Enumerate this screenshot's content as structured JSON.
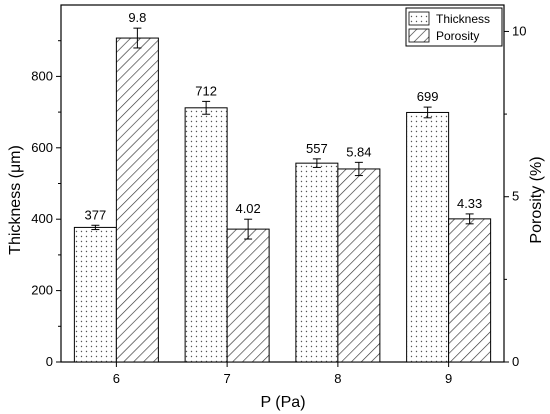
{
  "chart_data": {
    "type": "bar",
    "xlabel": "P (Pa)",
    "categories": [
      "6",
      "7",
      "8",
      "9"
    ],
    "y_left": {
      "label": "Thickness (μm)",
      "range": [
        0,
        1000
      ],
      "ticks": [
        0,
        200,
        400,
        600,
        800
      ]
    },
    "y_right": {
      "label": "Porosity (%)",
      "range": [
        0,
        10.8
      ],
      "ticks": [
        0,
        5,
        10
      ]
    },
    "series": [
      {
        "name": "Thickness",
        "axis": "left",
        "pattern": "dots",
        "values": [
          377,
          712,
          557,
          699
        ],
        "errors": [
          6,
          18,
          12,
          15
        ],
        "labels": [
          "377",
          "712",
          "557",
          "699"
        ]
      },
      {
        "name": "Porosity",
        "axis": "right",
        "pattern": "hatch",
        "values": [
          9.8,
          4.02,
          5.84,
          4.33
        ],
        "errors": [
          0.3,
          0.3,
          0.2,
          0.15
        ],
        "labels": [
          "9.8",
          "4.02",
          "5.84",
          "4.33"
        ]
      }
    ],
    "legend_position": "top-right",
    "grid": false
  }
}
